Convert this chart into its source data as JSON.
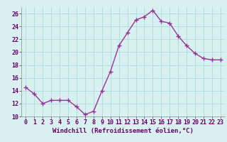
{
  "x": [
    0,
    1,
    2,
    3,
    4,
    5,
    6,
    7,
    8,
    9,
    10,
    11,
    12,
    13,
    14,
    15,
    16,
    17,
    18,
    19,
    20,
    21,
    22,
    23
  ],
  "y": [
    14.5,
    13.5,
    12.0,
    12.5,
    12.5,
    12.5,
    11.5,
    10.3,
    10.8,
    14.0,
    17.0,
    21.0,
    23.0,
    25.0,
    25.5,
    26.5,
    24.8,
    24.5,
    22.5,
    21.0,
    19.8,
    19.0,
    18.8,
    18.8
  ],
  "line_color": "#993399",
  "marker": "+",
  "marker_size": 4,
  "marker_edge_width": 1.0,
  "xlabel": "Windchill (Refroidissement éolien,°C)",
  "xlabel_fontsize": 6.5,
  "ylim": [
    10,
    27
  ],
  "xlim": [
    -0.5,
    23.5
  ],
  "yticks": [
    10,
    12,
    14,
    16,
    18,
    20,
    22,
    24,
    26
  ],
  "xticks": [
    0,
    1,
    2,
    3,
    4,
    5,
    6,
    7,
    8,
    9,
    10,
    11,
    12,
    13,
    14,
    15,
    16,
    17,
    18,
    19,
    20,
    21,
    22,
    23
  ],
  "grid_color": "#b0dede",
  "background_color": "#d8f0f0",
  "tick_label_fontsize": 6.0,
  "line_width": 1.0,
  "xlabel_color": "#660066",
  "xlabel_fontweight": "bold"
}
